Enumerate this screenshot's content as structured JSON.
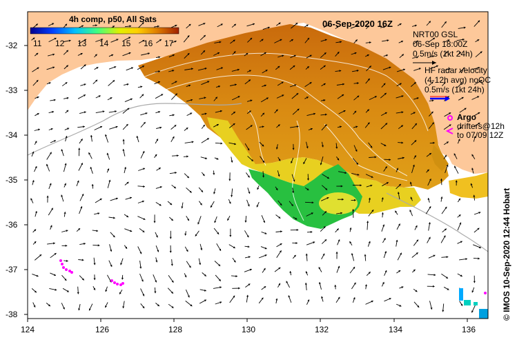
{
  "title": "06-Sep-2020 16Z",
  "colorbar": {
    "label": "4h comp, p50, All Sats",
    "ticks": [
      "11",
      "12",
      "13",
      "14",
      "15",
      "16",
      "17"
    ]
  },
  "legend": {
    "gsl_title": "NRT00 GSL",
    "gsl_time": "06-Sep 18:00Z",
    "gsl_scale": "0.5m/s (1kt 24h)",
    "hf_line1": "HF radar velocity",
    "hf_line2": "(4-12h avg) noQC",
    "hf_scale": "0.5m/s (1kt 24h)",
    "argo": "Argo",
    "drifters_line1": "drifters@12h",
    "drifters_line2": "to 07/09 12Z"
  },
  "credit": "© IMOS 10-Sep-2020 12:44 Hobart",
  "axes": {
    "x_ticks": [
      "124",
      "126",
      "128",
      "130",
      "132",
      "134",
      "136"
    ],
    "y_ticks": [
      "-32",
      "-33",
      "-34",
      "-35",
      "-36",
      "-37",
      "-38"
    ]
  },
  "colors": {
    "land": "#fdc89a",
    "ocean": "#ffffff",
    "warm": "#d97a10",
    "mid": "#ffd000",
    "cool": "#22cc44",
    "argo": "#ff00ff",
    "hf_arrow": "#0000ff"
  }
}
